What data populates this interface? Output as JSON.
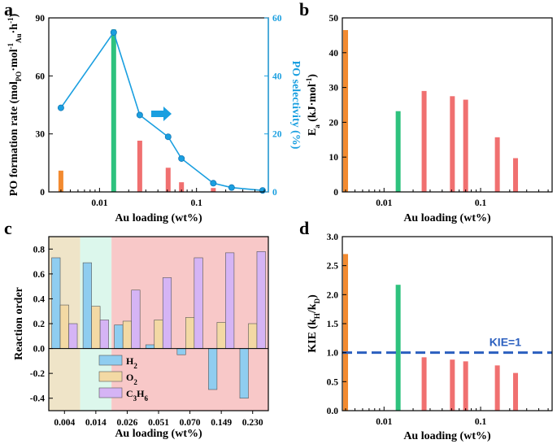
{
  "chart_data": [
    {
      "panel": "a",
      "type": "bar+line",
      "xlabel": "Au loading (wt%)",
      "xscale": "log",
      "xticks": [
        "0.01",
        "0.1"
      ],
      "ylabel_left": "PO formation rate (mol_PO·mol_Au^-1·h^-1)",
      "ylabel_parts": [
        "PO formation rate (mol",
        "PO",
        "·mol",
        "-1",
        "Au",
        "·h",
        "-1",
        ")"
      ],
      "ylim_left": [
        0,
        90
      ],
      "yticks_left": [
        "0",
        "30",
        "60",
        "90"
      ],
      "ylabel_right": "PO selectivity (%)",
      "ylim_right": [
        0,
        60
      ],
      "yticks_right": [
        "0",
        "20",
        "40",
        "60"
      ],
      "bars": [
        {
          "x": 0.004,
          "value": 11,
          "color": "#f28a30"
        },
        {
          "x": 0.014,
          "value": 84,
          "color": "#2ec27e"
        },
        {
          "x": 0.026,
          "value": 26.5,
          "color": "#f07070"
        },
        {
          "x": 0.051,
          "value": 12.5,
          "color": "#f07070"
        },
        {
          "x": 0.07,
          "value": 5,
          "color": "#f07070"
        },
        {
          "x": 0.149,
          "value": 2,
          "color": "#f07070"
        }
      ],
      "series_right": {
        "name": "PO selectivity",
        "color": "#1a9fe0",
        "x": [
          0.004,
          0.014,
          0.026,
          0.051,
          0.07,
          0.149,
          0.23,
          0.48
        ],
        "values": [
          29,
          55,
          26.5,
          19,
          11.5,
          3,
          1.5,
          0.5
        ]
      },
      "annotation": "arrow pointing right (selectivity axis)"
    },
    {
      "panel": "b",
      "type": "bar",
      "xlabel": "Au loading (wt%)",
      "xscale": "log",
      "xticks": [
        "0.01",
        "0.1"
      ],
      "ylabel_parts": [
        "E",
        "a",
        " (kJ·mol",
        "-1",
        ")"
      ],
      "ylim": [
        0,
        50
      ],
      "yticks": [
        "0",
        "10",
        "20",
        "30",
        "40",
        "50"
      ],
      "bars": [
        {
          "x": 0.004,
          "value": 46.5,
          "color": "#f28a30"
        },
        {
          "x": 0.014,
          "value": 23.2,
          "color": "#2ec27e"
        },
        {
          "x": 0.026,
          "value": 29.0,
          "color": "#f07070"
        },
        {
          "x": 0.051,
          "value": 27.5,
          "color": "#f07070"
        },
        {
          "x": 0.07,
          "value": 26.5,
          "color": "#f07070"
        },
        {
          "x": 0.149,
          "value": 15.7,
          "color": "#f07070"
        },
        {
          "x": 0.23,
          "value": 9.7,
          "color": "#f07070"
        }
      ]
    },
    {
      "panel": "c",
      "type": "bar",
      "xlabel": "Au loading (wt%)",
      "ylabel": "Reaction order",
      "ylim": [
        -0.5,
        0.9
      ],
      "yticks": [
        "-0.4",
        "-0.2",
        "0.0",
        "0.2",
        "0.4",
        "0.6",
        "0.8"
      ],
      "categories": [
        "0.004",
        "0.014",
        "0.026",
        "0.051",
        "0.070",
        "0.149",
        "0.230"
      ],
      "background_bands": [
        {
          "from": 0,
          "to": 1,
          "color": "#efe4c8"
        },
        {
          "from": 1,
          "to": 2,
          "color": "#dcf7ec"
        },
        {
          "from": 2,
          "to": 7,
          "color": "#f8c8c8"
        }
      ],
      "series": [
        {
          "name": "H2",
          "label_main": "H",
          "label_sub": "2",
          "color": "#8fcdf0",
          "values": [
            0.73,
            0.69,
            0.19,
            0.03,
            -0.05,
            -0.33,
            -0.4
          ]
        },
        {
          "name": "O2",
          "label_main": "O",
          "label_sub": "2",
          "color": "#f3d9a4",
          "values": [
            0.35,
            0.34,
            0.22,
            0.23,
            0.25,
            0.21,
            0.2
          ]
        },
        {
          "name": "C3H6",
          "label_main": "C",
          "label_sub": "3",
          "label_main2": "H",
          "label_sub2": "6",
          "color": "#d5b4f5",
          "values": [
            0.2,
            0.23,
            0.47,
            0.57,
            0.73,
            0.77,
            0.78
          ]
        }
      ]
    },
    {
      "panel": "d",
      "type": "bar",
      "xlabel": "Au loading (wt%)",
      "xscale": "log",
      "xticks": [
        "0.01",
        "0.1"
      ],
      "ylabel_parts": [
        "KIE (k",
        "H",
        "/k",
        "D",
        ")"
      ],
      "ylim": [
        0,
        3.0
      ],
      "yticks": [
        "0.0",
        "0.5",
        "1.0",
        "1.5",
        "2.0",
        "2.5",
        "3.0"
      ],
      "reference_line": {
        "value": 1.0,
        "label": "KIE=1",
        "color": "#2b5fbf"
      },
      "bars": [
        {
          "x": 0.004,
          "value": 2.7,
          "color": "#f28a30"
        },
        {
          "x": 0.014,
          "value": 2.17,
          "color": "#2ec27e"
        },
        {
          "x": 0.026,
          "value": 0.92,
          "color": "#f07070"
        },
        {
          "x": 0.051,
          "value": 0.88,
          "color": "#f07070"
        },
        {
          "x": 0.07,
          "value": 0.85,
          "color": "#f07070"
        },
        {
          "x": 0.149,
          "value": 0.78,
          "color": "#f07070"
        },
        {
          "x": 0.23,
          "value": 0.65,
          "color": "#f07070"
        }
      ]
    }
  ],
  "panel_labels": [
    "a",
    "b",
    "c",
    "d"
  ]
}
